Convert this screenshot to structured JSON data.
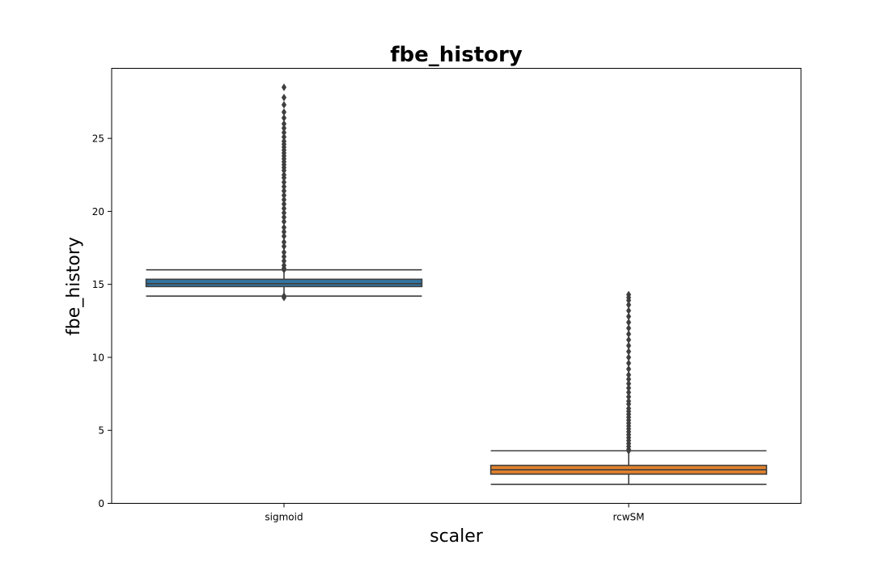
{
  "chart_data": {
    "type": "box",
    "title": "fbe_history",
    "xlabel": "scaler",
    "ylabel": "fbe_history",
    "ylim": [
      0,
      29.8
    ],
    "yticks": [
      0,
      5,
      10,
      15,
      20,
      25
    ],
    "ytick_labels": [
      "0",
      "5",
      "10",
      "15",
      "20",
      "25"
    ],
    "grid": false,
    "categories": [
      "sigmoid",
      "rcwSM"
    ],
    "series": [
      {
        "category": "sigmoid",
        "color": "#3274a1",
        "whisker_low": 14.2,
        "q1": 14.85,
        "median": 15.05,
        "q3": 15.35,
        "whisker_high": 16.0,
        "outliers": [
          14.1,
          14.2,
          16.0,
          16.1,
          16.3,
          16.6,
          16.9,
          17.2,
          17.6,
          17.9,
          18.3,
          18.6,
          18.9,
          19.3,
          19.6,
          19.9,
          20.2,
          20.5,
          20.8,
          21.1,
          21.4,
          21.7,
          22.0,
          22.3,
          22.5,
          22.8,
          23.0,
          23.2,
          23.4,
          23.6,
          23.8,
          24.0,
          24.2,
          24.4,
          24.6,
          24.8,
          25.1,
          25.4,
          25.7,
          26.0,
          26.4,
          26.8,
          27.3,
          27.8,
          28.5
        ]
      },
      {
        "category": "rcwSM",
        "color": "#e1812c",
        "whisker_low": 1.3,
        "q1": 2.0,
        "median": 2.3,
        "q3": 2.6,
        "whisker_high": 3.6,
        "outliers": [
          3.6,
          3.7,
          3.9,
          4.1,
          4.3,
          4.5,
          4.7,
          4.9,
          5.1,
          5.3,
          5.5,
          5.7,
          5.9,
          6.1,
          6.3,
          6.5,
          6.8,
          7.0,
          7.3,
          7.6,
          7.9,
          8.2,
          8.5,
          8.8,
          9.2,
          9.6,
          10.0,
          10.4,
          10.8,
          11.2,
          11.6,
          12.0,
          12.4,
          12.8,
          13.2,
          13.6,
          13.9,
          14.1,
          14.3
        ]
      }
    ]
  }
}
